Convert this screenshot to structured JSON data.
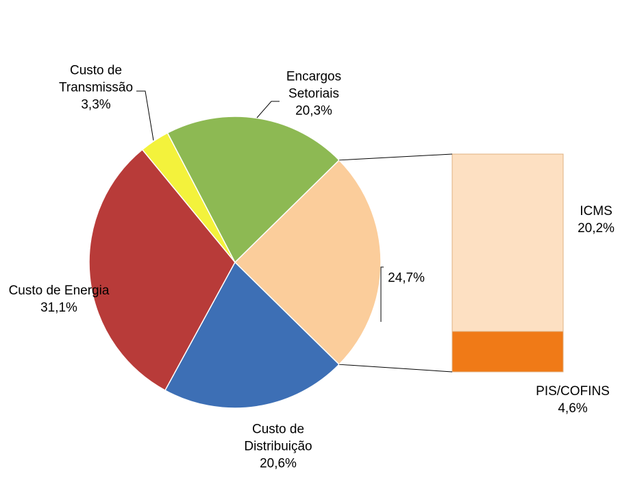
{
  "chart_data": {
    "type": "pie-of-bar",
    "slices": [
      {
        "name": null,
        "value": 24.7,
        "value_label": "24,7%",
        "color": "#fbcd9b"
      },
      {
        "name": "Custo de Distribuição",
        "value": 20.6,
        "value_label": "20,6%",
        "color": "#3d6fb5"
      },
      {
        "name": "Custo de Energia",
        "value": 31.1,
        "value_label": "31,1%",
        "color": "#b83b39"
      },
      {
        "name": "Custo de Transmissão",
        "value": 3.3,
        "value_label": "3,3%",
        "color": "#f3f23c"
      },
      {
        "name": "Encargos Setoriais",
        "value": 20.3,
        "value_label": "20,3%",
        "color": "#8db953"
      }
    ],
    "bar": [
      {
        "name": "ICMS",
        "value": 20.2,
        "value_label": "20,2%",
        "color": "#fde0c2"
      },
      {
        "name": "PIS/COFINS",
        "value": 4.6,
        "value_label": "4,6%",
        "color": "#f07a17"
      }
    ]
  }
}
